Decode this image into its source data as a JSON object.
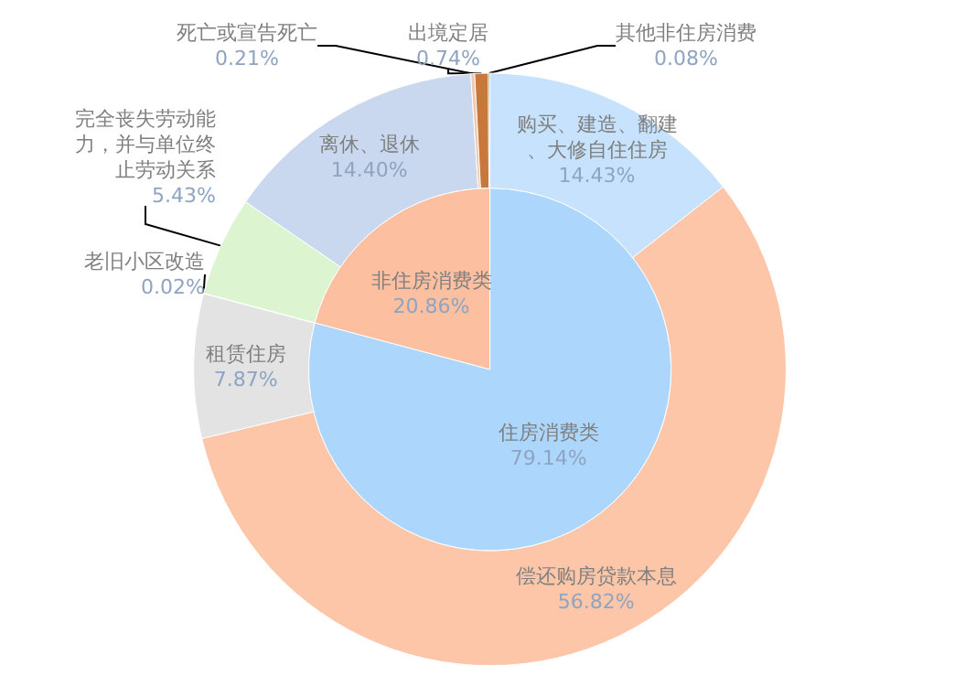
{
  "chart_data": [
    {
      "type": "pie",
      "categories": [
        "住房消费类",
        "非住房消费类"
      ],
      "values": [
        79.14,
        20.86
      ],
      "colors": [
        "#acd6fc",
        "#fcc0a0"
      ],
      "value_labels": [
        "79.14%",
        "20.86%"
      ]
    },
    {
      "type": "donut",
      "categories": [
        "购买、建造、翻建、大修自住住房",
        "偿还购房贷款本息",
        "租赁住房",
        "老旧小区改造",
        "完全丧失劳动能力，并与单位终止劳动关系",
        "离休、退休",
        "死亡或宣告死亡",
        "出境定居",
        "其他非住房消费"
      ],
      "values": [
        14.43,
        56.82,
        7.87,
        0.02,
        5.43,
        14.4,
        0.21,
        0.74,
        0.08
      ],
      "colors": [
        "#c6e2fc",
        "#fdc6a8",
        "#e3e3e3",
        "#9bd17e",
        "#dcf5d0",
        "#c9d8ef",
        "#f0c8b0",
        "#c8783a",
        "#8a7a20"
      ],
      "value_labels": [
        "14.43%",
        "56.82%",
        "7.87%",
        "0.02%",
        "5.43%",
        "14.40%",
        "0.21%",
        "0.74%",
        "0.08%"
      ]
    }
  ]
}
